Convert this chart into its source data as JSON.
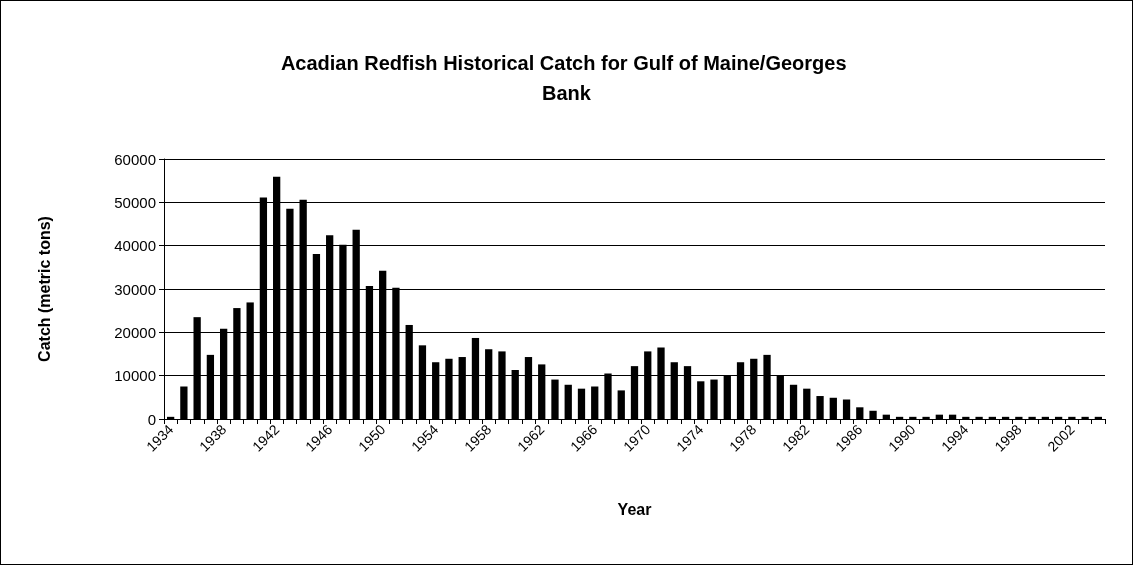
{
  "chart_data": {
    "type": "bar",
    "title": "Acadian Redfish Historical Catch for Gulf of Maine/Georges Bank",
    "xlabel": "Year",
    "ylabel": "Catch (metric tons)",
    "categories": [
      "1934",
      null,
      null,
      null,
      "1938",
      null,
      null,
      null,
      "1942",
      null,
      null,
      null,
      "1946",
      null,
      null,
      null,
      "1950",
      null,
      null,
      null,
      "1954",
      null,
      null,
      null,
      "1958",
      null,
      null,
      null,
      "1962",
      null,
      null,
      null,
      "1966",
      null,
      null,
      null,
      "1970",
      null,
      null,
      null,
      "1974",
      null,
      null,
      null,
      "1978",
      null,
      null,
      null,
      "1982",
      null,
      null,
      null,
      "1986",
      null,
      null,
      null,
      "1990",
      null,
      null,
      null,
      "1994",
      null,
      null,
      null,
      "1998",
      null,
      null,
      null,
      "2002",
      null,
      null
    ],
    "values": [
      500,
      7500,
      23500,
      14800,
      20800,
      25600,
      26900,
      51100,
      55900,
      48500,
      50600,
      38100,
      42400,
      40200,
      43700,
      30700,
      34200,
      30300,
      21700,
      17000,
      13100,
      13900,
      14300,
      18700,
      16100,
      15600,
      11300,
      14300,
      12600,
      9100,
      7900,
      7000,
      7500,
      10500,
      6600,
      12200,
      15600,
      16500,
      13100,
      12200,
      8700,
      9100,
      10100,
      13100,
      13900,
      14800,
      10100,
      7900,
      7000,
      5300,
      4900,
      4500,
      2700,
      1900,
      1000,
      500,
      500,
      500,
      1000,
      1000,
      500,
      500,
      500,
      500,
      500,
      500,
      500,
      500,
      500,
      500,
      500
    ],
    "color": "#000000",
    "ylim": [
      0,
      60000
    ],
    "yticks": [
      0,
      10000,
      20000,
      30000,
      40000,
      50000,
      60000
    ],
    "grid": "y"
  }
}
